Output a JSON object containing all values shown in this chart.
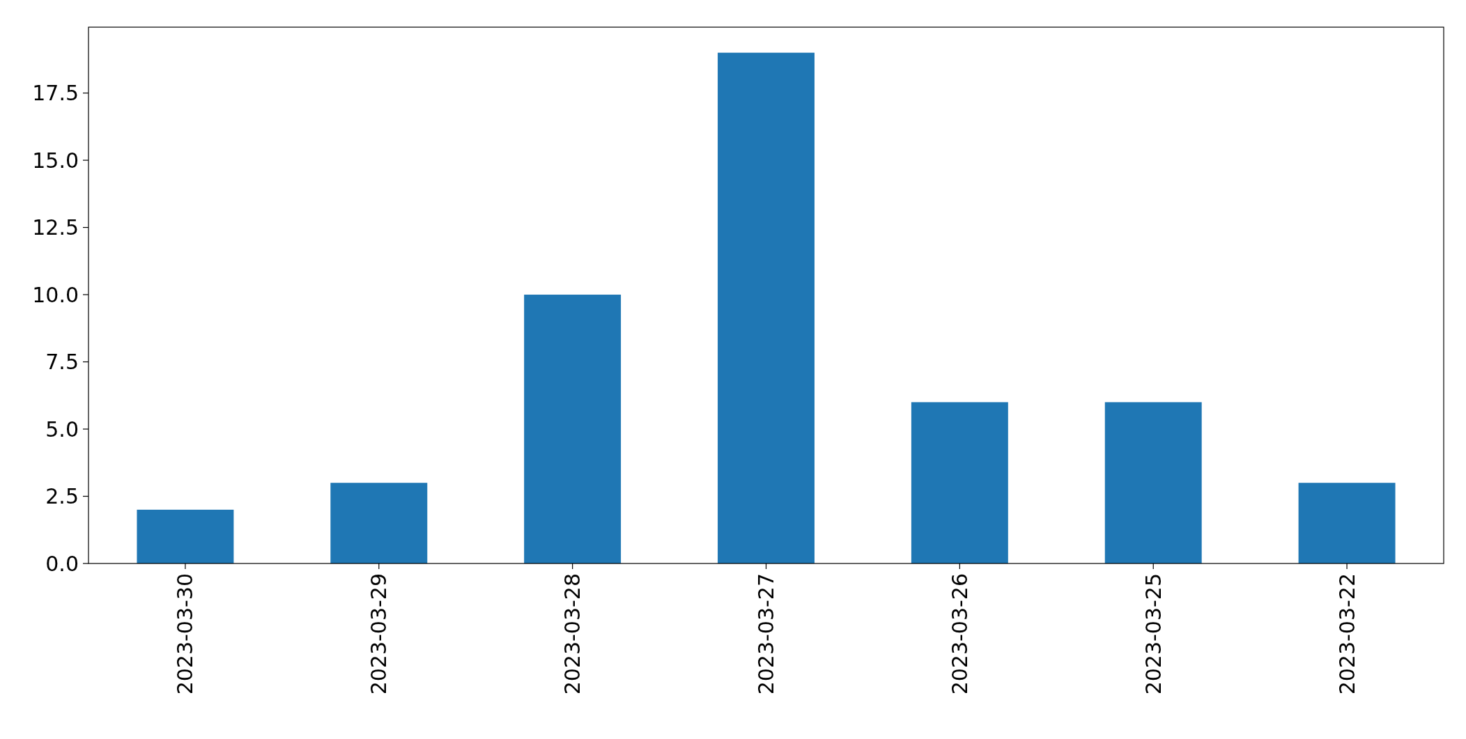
{
  "chart_data": {
    "type": "bar",
    "categories": [
      "2023-03-30",
      "2023-03-29",
      "2023-03-28",
      "2023-03-27",
      "2023-03-26",
      "2023-03-25",
      "2023-03-22"
    ],
    "values": [
      2,
      3,
      10,
      19,
      6,
      6,
      3
    ],
    "color": "#1f77b4",
    "ylim": [
      0,
      19.95
    ],
    "yticks": [
      {
        "value": 0,
        "label": "0.0"
      },
      {
        "value": 2.5,
        "label": "2.5"
      },
      {
        "value": 5,
        "label": "5.0"
      },
      {
        "value": 7.5,
        "label": "7.5"
      },
      {
        "value": 10,
        "label": "10.0"
      },
      {
        "value": 12.5,
        "label": "12.5"
      },
      {
        "value": 15,
        "label": "15.0"
      },
      {
        "value": 17.5,
        "label": "17.5"
      }
    ],
    "grid": false
  }
}
